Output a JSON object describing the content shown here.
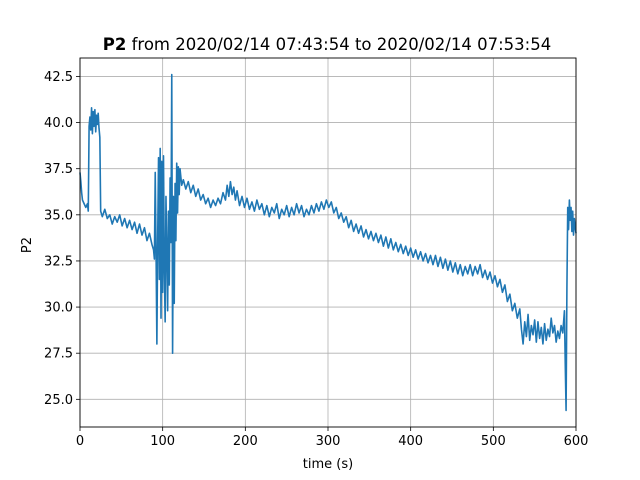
{
  "chart_data": {
    "type": "line",
    "title": {
      "variable": "P2",
      "rest": " from 2020/02/14 07:43:54 to 2020/02/14 07:53:54"
    },
    "xlabel": "time (s)",
    "ylabel": "P2",
    "xlim": [
      0,
      600
    ],
    "ylim": [
      23.5,
      43.5
    ],
    "xticks": [
      0,
      100,
      200,
      300,
      400,
      500,
      600
    ],
    "xtick_labels": [
      "0",
      "100",
      "200",
      "300",
      "400",
      "500",
      "600"
    ],
    "yticks": [
      25.0,
      27.5,
      30.0,
      32.5,
      35.0,
      37.5,
      40.0,
      42.5
    ],
    "ytick_labels": [
      "25.0",
      "27.5",
      "30.0",
      "32.5",
      "35.0",
      "37.5",
      "40.0",
      "42.5"
    ],
    "grid": true,
    "line_color": "#1f77b4",
    "series": [
      {
        "points": [
          [
            0,
            37.3
          ],
          [
            1,
            36.8
          ],
          [
            2,
            36.2
          ],
          [
            3,
            35.8
          ],
          [
            5,
            35.6
          ],
          [
            7,
            35.4
          ],
          [
            9,
            35.6
          ],
          [
            10,
            35.2
          ],
          [
            11,
            39.8
          ],
          [
            12,
            40.3
          ],
          [
            13,
            39.6
          ],
          [
            14,
            40.8
          ],
          [
            15,
            39.4
          ],
          [
            16,
            40.6
          ],
          [
            17,
            39.8
          ],
          [
            18,
            40.7
          ],
          [
            19,
            39.5
          ],
          [
            20,
            40.4
          ],
          [
            21,
            39.9
          ],
          [
            22,
            40.5
          ],
          [
            23,
            39.7
          ],
          [
            24,
            39.2
          ],
          [
            25,
            35.2
          ],
          [
            27,
            34.9
          ],
          [
            30,
            35.3
          ],
          [
            33,
            34.8
          ],
          [
            36,
            35.0
          ],
          [
            39,
            34.5
          ],
          [
            42,
            34.9
          ],
          [
            45,
            34.6
          ],
          [
            48,
            35.0
          ],
          [
            51,
            34.4
          ],
          [
            54,
            34.8
          ],
          [
            57,
            34.3
          ],
          [
            60,
            34.7
          ],
          [
            63,
            34.2
          ],
          [
            66,
            34.6
          ],
          [
            69,
            34.0
          ],
          [
            72,
            34.5
          ],
          [
            75,
            33.9
          ],
          [
            78,
            34.3
          ],
          [
            81,
            33.6
          ],
          [
            84,
            34.0
          ],
          [
            87,
            33.4
          ],
          [
            89,
            33.1
          ],
          [
            90,
            32.6
          ],
          [
            91,
            37.3
          ],
          [
            92,
            33.1
          ],
          [
            93,
            28.0
          ],
          [
            94,
            33.8
          ],
          [
            95,
            38.1
          ],
          [
            96,
            31.5
          ],
          [
            97,
            38.6
          ],
          [
            98,
            29.4
          ],
          [
            99,
            37.9
          ],
          [
            100,
            30.8
          ],
          [
            101,
            38.2
          ],
          [
            102,
            32.1
          ],
          [
            103,
            29.2
          ],
          [
            104,
            36.0
          ],
          [
            105,
            33.1
          ],
          [
            106,
            29.8
          ],
          [
            107,
            35.2
          ],
          [
            108,
            31.2
          ],
          [
            109,
            37.0
          ],
          [
            110,
            33.5
          ],
          [
            111,
            42.6
          ],
          [
            112,
            27.5
          ],
          [
            113,
            36.0
          ],
          [
            114,
            30.2
          ],
          [
            115,
            36.7
          ],
          [
            116,
            33.6
          ],
          [
            117,
            37.8
          ],
          [
            118,
            35.1
          ],
          [
            119,
            37.6
          ],
          [
            120,
            36.1
          ],
          [
            121,
            37.5
          ],
          [
            123,
            36.6
          ],
          [
            125,
            36.9
          ],
          [
            128,
            36.4
          ],
          [
            131,
            36.8
          ],
          [
            134,
            36.2
          ],
          [
            137,
            36.6
          ],
          [
            140,
            36.0
          ],
          [
            143,
            36.4
          ],
          [
            146,
            35.8
          ],
          [
            149,
            36.1
          ],
          [
            152,
            35.6
          ],
          [
            155,
            35.9
          ],
          [
            158,
            35.4
          ],
          [
            161,
            35.8
          ],
          [
            164,
            35.5
          ],
          [
            167,
            35.9
          ],
          [
            170,
            35.6
          ],
          [
            173,
            36.2
          ],
          [
            176,
            35.8
          ],
          [
            178,
            36.6
          ],
          [
            180,
            36.0
          ],
          [
            182,
            36.8
          ],
          [
            184,
            36.1
          ],
          [
            186,
            36.5
          ],
          [
            188,
            35.8
          ],
          [
            190,
            36.3
          ],
          [
            193,
            35.5
          ],
          [
            196,
            36.0
          ],
          [
            199,
            35.4
          ],
          [
            202,
            35.9
          ],
          [
            205,
            35.3
          ],
          [
            208,
            35.7
          ],
          [
            211,
            35.2
          ],
          [
            214,
            35.8
          ],
          [
            217,
            35.3
          ],
          [
            220,
            35.6
          ],
          [
            223,
            35.0
          ],
          [
            226,
            35.5
          ],
          [
            229,
            34.9
          ],
          [
            232,
            35.4
          ],
          [
            235,
            35.1
          ],
          [
            238,
            35.6
          ],
          [
            241,
            34.8
          ],
          [
            244,
            35.3
          ],
          [
            247,
            35.0
          ],
          [
            250,
            35.5
          ],
          [
            253,
            34.9
          ],
          [
            256,
            35.4
          ],
          [
            259,
            35.0
          ],
          [
            262,
            35.6
          ],
          [
            265,
            35.1
          ],
          [
            268,
            35.5
          ],
          [
            271,
            34.9
          ],
          [
            274,
            35.3
          ],
          [
            277,
            35.0
          ],
          [
            280,
            35.5
          ],
          [
            283,
            35.1
          ],
          [
            286,
            35.6
          ],
          [
            289,
            35.2
          ],
          [
            292,
            35.7
          ],
          [
            295,
            35.3
          ],
          [
            298,
            35.8
          ],
          [
            301,
            35.4
          ],
          [
            304,
            35.7
          ],
          [
            307,
            35.1
          ],
          [
            310,
            35.4
          ],
          [
            313,
            34.8
          ],
          [
            316,
            35.1
          ],
          [
            319,
            34.6
          ],
          [
            322,
            34.9
          ],
          [
            325,
            34.3
          ],
          [
            328,
            34.7
          ],
          [
            331,
            34.1
          ],
          [
            334,
            34.5
          ],
          [
            337,
            34.0
          ],
          [
            340,
            34.4
          ],
          [
            343,
            33.8
          ],
          [
            346,
            34.2
          ],
          [
            349,
            33.7
          ],
          [
            352,
            34.1
          ],
          [
            355,
            33.6
          ],
          [
            358,
            34.0
          ],
          [
            361,
            33.5
          ],
          [
            364,
            33.9
          ],
          [
            367,
            33.3
          ],
          [
            370,
            33.8
          ],
          [
            373,
            33.2
          ],
          [
            376,
            33.7
          ],
          [
            379,
            33.1
          ],
          [
            382,
            33.5
          ],
          [
            385,
            33.0
          ],
          [
            388,
            33.4
          ],
          [
            391,
            32.9
          ],
          [
            394,
            33.3
          ],
          [
            397,
            32.8
          ],
          [
            400,
            33.2
          ],
          [
            403,
            32.7
          ],
          [
            406,
            33.1
          ],
          [
            409,
            32.6
          ],
          [
            412,
            33.0
          ],
          [
            415,
            32.5
          ],
          [
            418,
            32.9
          ],
          [
            421,
            32.4
          ],
          [
            424,
            32.8
          ],
          [
            427,
            32.3
          ],
          [
            430,
            32.8
          ],
          [
            433,
            32.2
          ],
          [
            436,
            32.7
          ],
          [
            439,
            32.1
          ],
          [
            442,
            32.6
          ],
          [
            445,
            32.0
          ],
          [
            448,
            32.5
          ],
          [
            451,
            31.9
          ],
          [
            454,
            32.4
          ],
          [
            457,
            31.8
          ],
          [
            460,
            32.3
          ],
          [
            463,
            31.7
          ],
          [
            466,
            32.2
          ],
          [
            469,
            31.8
          ],
          [
            472,
            32.3
          ],
          [
            475,
            31.7
          ],
          [
            478,
            32.2
          ],
          [
            481,
            31.8
          ],
          [
            484,
            32.3
          ],
          [
            487,
            31.6
          ],
          [
            490,
            32.0
          ],
          [
            493,
            31.5
          ],
          [
            496,
            31.9
          ],
          [
            499,
            31.3
          ],
          [
            502,
            31.7
          ],
          [
            505,
            31.1
          ],
          [
            508,
            31.5
          ],
          [
            511,
            30.8
          ],
          [
            514,
            31.2
          ],
          [
            517,
            30.3
          ],
          [
            520,
            30.7
          ],
          [
            523,
            29.8
          ],
          [
            526,
            30.2
          ],
          [
            529,
            29.4
          ],
          [
            532,
            29.9
          ],
          [
            534,
            28.8
          ],
          [
            536,
            28.0
          ],
          [
            538,
            29.2
          ],
          [
            540,
            28.4
          ],
          [
            542,
            29.6
          ],
          [
            544,
            28.2
          ],
          [
            546,
            29.0
          ],
          [
            548,
            28.5
          ],
          [
            550,
            29.3
          ],
          [
            552,
            28.1
          ],
          [
            554,
            29.2
          ],
          [
            556,
            28.3
          ],
          [
            558,
            28.9
          ],
          [
            560,
            28.0
          ],
          [
            562,
            29.1
          ],
          [
            564,
            28.2
          ],
          [
            566,
            28.8
          ],
          [
            568,
            28.4
          ],
          [
            570,
            29.4
          ],
          [
            572,
            28.6
          ],
          [
            574,
            29.0
          ],
          [
            576,
            28.1
          ],
          [
            578,
            28.7
          ],
          [
            580,
            28.3
          ],
          [
            582,
            29.0
          ],
          [
            584,
            28.6
          ],
          [
            586,
            29.8
          ],
          [
            587,
            26.9
          ],
          [
            588,
            24.4
          ],
          [
            589,
            31.0
          ],
          [
            590,
            35.4
          ],
          [
            591,
            34.2
          ],
          [
            592,
            35.8
          ],
          [
            593,
            34.7
          ],
          [
            594,
            35.4
          ],
          [
            595,
            34.1
          ],
          [
            596,
            35.2
          ],
          [
            597,
            33.9
          ],
          [
            598,
            34.8
          ],
          [
            599,
            34.3
          ],
          [
            600,
            34.0
          ]
        ]
      }
    ]
  }
}
